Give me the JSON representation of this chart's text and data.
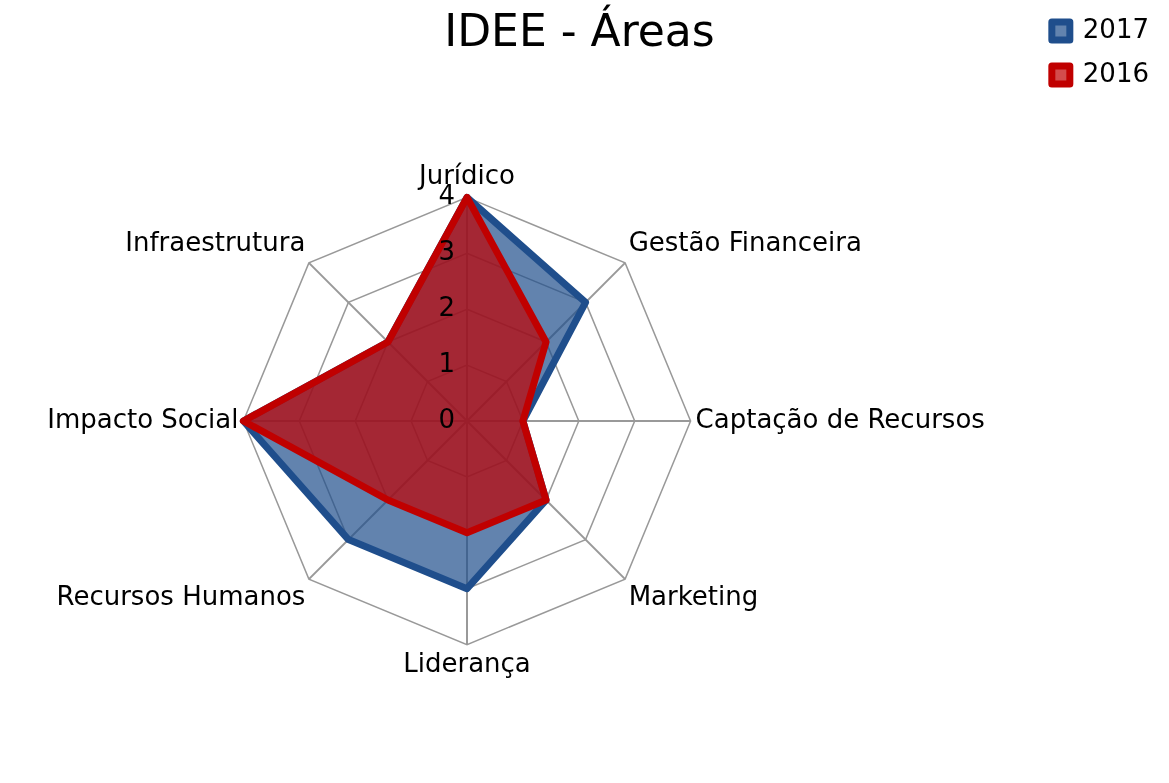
{
  "chart_data": {
    "type": "radar",
    "title": "IDEE - Áreas",
    "categories": [
      "Jurídico",
      "Gestão Financeira",
      "Captação de Recursos",
      "Marketing",
      "Liderança",
      "Recursos Humanos",
      "Impacto Social",
      "Infraestrutura"
    ],
    "series": [
      {
        "name": "2017",
        "color": "#1f4e8c",
        "values": [
          4,
          3,
          1,
          2,
          3,
          3,
          4,
          2
        ]
      },
      {
        "name": "2016",
        "color": "#c00000",
        "values": [
          4,
          2,
          1,
          2,
          2,
          2,
          4,
          2
        ]
      }
    ],
    "ylim": [
      0,
      4
    ],
    "yticks": [
      0,
      1,
      2,
      3,
      4
    ],
    "grid": true,
    "legend": "top right",
    "marker": "none"
  }
}
